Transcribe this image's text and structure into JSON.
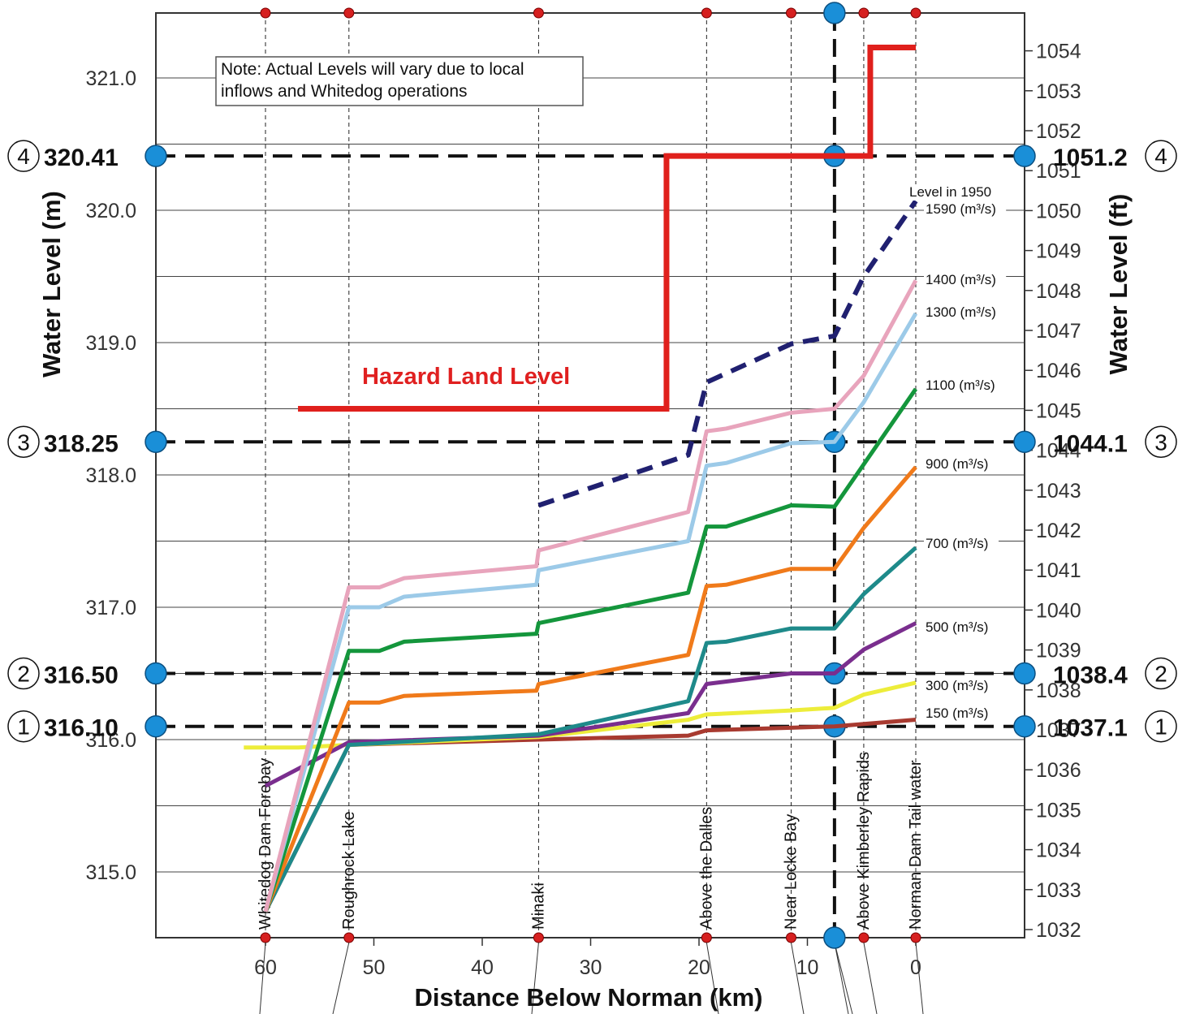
{
  "chart_data": {
    "type": "line",
    "xlabel": "Distance Below Norman (km)",
    "ylabel_left": "Water Level (m)",
    "ylabel_right": "Water Level (ft)",
    "xlim": [
      70,
      -10
    ],
    "ylim": [
      314.5,
      321.5
    ],
    "y_ticks_m": [
      "315.0",
      "316.0",
      "317.0",
      "318.0",
      "319.0",
      "320.0",
      "321.0"
    ],
    "y_ticks_ft": [
      "1032",
      "1033",
      "1034",
      "1035",
      "1036",
      "1037",
      "1038",
      "1039",
      "1040",
      "1041",
      "1042",
      "1043",
      "1044",
      "1045",
      "1046",
      "1047",
      "1048",
      "1049",
      "1050",
      "1051",
      "1052",
      "1053",
      "1054"
    ],
    "x_ticks": [
      "60",
      "50",
      "40",
      "30",
      "20",
      "10",
      "0"
    ],
    "grid": true,
    "note": [
      "Note: Actual Levels will vary due to local",
      "inflows and Whitedog operations"
    ],
    "locations": [
      {
        "name": "Whitedog Dam Forebay",
        "km": 60
      },
      {
        "name": "Roughrock Lake",
        "km": 52.3
      },
      {
        "name": "Minaki",
        "km": 34.8
      },
      {
        "name": "Above the Dalles",
        "km": 19.3
      },
      {
        "name": "Near Locke Bay",
        "km": 11.5
      },
      {
        "name": "Above Kimberley Rapids",
        "km": 4.8
      },
      {
        "name": "Norman Dam Tail water",
        "km": 0
      }
    ],
    "reference_levels": [
      {
        "id": "1",
        "m_label": "316.10",
        "ft_label": "1037.1",
        "m": 316.1
      },
      {
        "id": "2",
        "m_label": "316.50",
        "ft_label": "1038.4",
        "m": 316.5
      },
      {
        "id": "3",
        "m_label": "318.25",
        "ft_label": "1044.1",
        "m": 318.25
      },
      {
        "id": "4",
        "m_label": "320.41",
        "ft_label": "1051.2",
        "m": 320.41
      }
    ],
    "hazard": {
      "label": "Hazard Land Level",
      "color": "#e0201c",
      "x": [
        57,
        23,
        23,
        4.2,
        4.2,
        0
      ],
      "y": [
        318.5,
        318.5,
        320.41,
        320.41,
        321.23,
        321.23
      ]
    },
    "series": [
      {
        "name": "150 (m³/s)",
        "color": "#a83a30",
        "dashed": false,
        "x": [
          60,
          52.3,
          34.8,
          21,
          19.3,
          11.5,
          7.5,
          0
        ],
        "y": [
          314.7,
          315.96,
          316.0,
          316.03,
          316.07,
          316.09,
          316.1,
          316.15
        ]
      },
      {
        "name": "300 (m³/s)",
        "color": "#eded3a",
        "dashed": false,
        "x": [
          62,
          57,
          52.3,
          34.8,
          21,
          19.3,
          11.5,
          7.5,
          4.8,
          0
        ],
        "y": [
          315.94,
          315.94,
          315.96,
          316.02,
          316.15,
          316.19,
          316.22,
          316.24,
          316.34,
          316.43
        ]
      },
      {
        "name": "500 (m³/s)",
        "color": "#7a2e8e",
        "dashed": false,
        "x": [
          60,
          52.3,
          34.8,
          21,
          19.3,
          11.5,
          7.5,
          4.8,
          0
        ],
        "y": [
          315.65,
          315.98,
          316.03,
          316.2,
          316.42,
          316.5,
          316.5,
          316.68,
          316.88
        ]
      },
      {
        "name": "700 (m³/s)",
        "color": "#1e8a8a",
        "dashed": false,
        "x": [
          60,
          52.3,
          34.8,
          21,
          19.3,
          17.5,
          11.5,
          7.5,
          4.8,
          0
        ],
        "y": [
          314.7,
          315.96,
          316.04,
          316.29,
          316.73,
          316.74,
          316.84,
          316.84,
          317.1,
          317.45
        ]
      },
      {
        "name": "900 (m³/s)",
        "color": "#f07a1a",
        "dashed": false,
        "x": [
          60,
          52.3,
          49.5,
          47.2,
          35,
          34.8,
          21,
          19.3,
          17.5,
          11.5,
          7.5,
          4.8,
          0
        ],
        "y": [
          314.7,
          316.28,
          316.28,
          316.33,
          316.37,
          316.42,
          316.64,
          317.16,
          317.17,
          317.29,
          317.29,
          317.6,
          318.06
        ]
      },
      {
        "name": "1100 (m³/s)",
        "color": "#14963c",
        "dashed": false,
        "x": [
          60,
          52.3,
          49.5,
          47.2,
          35,
          34.8,
          21,
          19.3,
          17.5,
          11.5,
          7.5,
          4.8,
          0
        ],
        "y": [
          314.7,
          316.67,
          316.67,
          316.74,
          316.8,
          316.88,
          317.11,
          317.61,
          317.61,
          317.77,
          317.76,
          318.08,
          318.65
        ]
      },
      {
        "name": "1300 (m³/s)",
        "color": "#9ccae8",
        "dashed": false,
        "x": [
          60,
          52.3,
          49.5,
          47.2,
          35,
          34.8,
          21,
          19.3,
          17.5,
          11.5,
          7.5,
          4.8,
          0
        ],
        "y": [
          314.7,
          317.0,
          317.0,
          317.08,
          317.17,
          317.28,
          317.5,
          318.07,
          318.09,
          318.24,
          318.25,
          318.55,
          319.22
        ]
      },
      {
        "name": "1400 (m³/s)",
        "color": "#e8a4bc",
        "dashed": false,
        "x": [
          60,
          52.3,
          49.5,
          47.2,
          35,
          34.8,
          21,
          19.3,
          17.5,
          11.5,
          7.5,
          4.8,
          0
        ],
        "y": [
          314.7,
          317.15,
          317.15,
          317.22,
          317.31,
          317.43,
          317.72,
          318.33,
          318.35,
          318.47,
          318.5,
          318.75,
          319.47
        ]
      },
      {
        "name": "1590 (m³/s)",
        "label_above": "Level in 1950",
        "color": "#202070",
        "dashed": true,
        "x": [
          34.8,
          21,
          19.3,
          11.5,
          7.5,
          4.8,
          0
        ],
        "y": [
          317.77,
          318.15,
          318.7,
          318.99,
          319.05,
          319.5,
          320.07
        ]
      }
    ]
  }
}
